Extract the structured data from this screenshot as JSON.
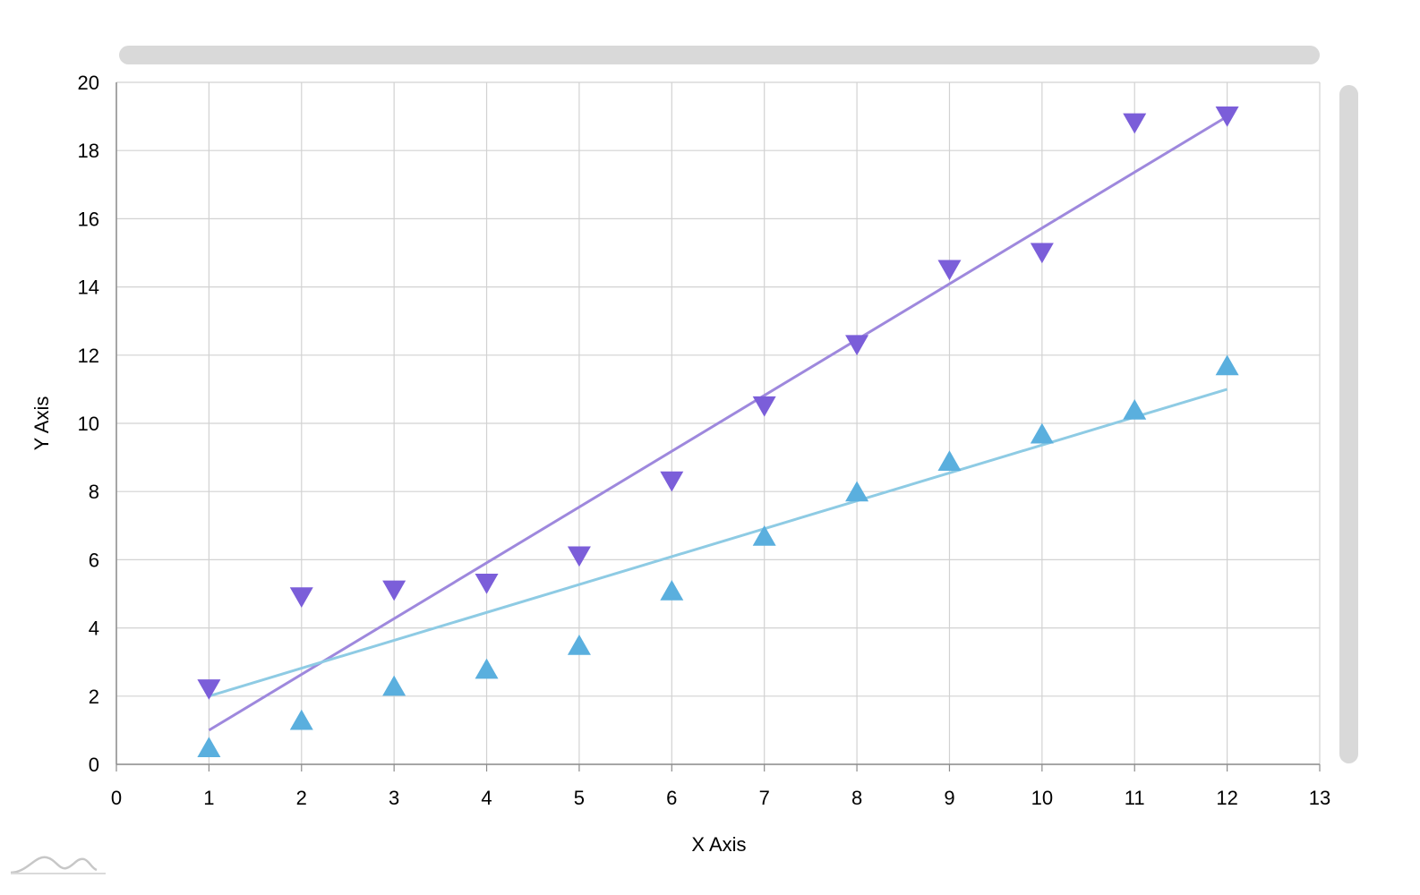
{
  "chart_data": {
    "type": "scatter",
    "xlabel": "X Axis",
    "ylabel": "Y Axis",
    "xlim": [
      0,
      13
    ],
    "ylim": [
      0,
      20
    ],
    "x_ticks": [
      "0",
      "1",
      "2",
      "3",
      "4",
      "5",
      "6",
      "7",
      "8",
      "9",
      "10",
      "11",
      "12",
      "13"
    ],
    "y_ticks": [
      "0",
      "2",
      "4",
      "6",
      "8",
      "10",
      "12",
      "14",
      "16",
      "18",
      "20"
    ],
    "grid": true,
    "series": [
      {
        "marker": "triangle-down",
        "color": "#7b5ed9",
        "trend_color": "#9e88dd",
        "x": [
          1,
          2,
          3,
          4,
          5,
          6,
          7,
          8,
          9,
          10,
          11,
          12
        ],
        "y": [
          2.2,
          4.9,
          5.1,
          5.3,
          6.1,
          8.3,
          10.5,
          12.3,
          14.5,
          15.0,
          18.8,
          19.0
        ],
        "trendline": {
          "x": [
            1,
            12
          ],
          "y": [
            1.0,
            19.0
          ]
        }
      },
      {
        "marker": "triangle-up",
        "color": "#5aafde",
        "trend_color": "#8ecbe4",
        "x": [
          1,
          2,
          3,
          4,
          5,
          6,
          7,
          8,
          9,
          10,
          11,
          12
        ],
        "y": [
          0.5,
          1.3,
          2.3,
          2.8,
          3.5,
          5.1,
          6.7,
          8.0,
          8.9,
          9.7,
          10.4,
          11.7
        ],
        "trendline": {
          "x": [
            1,
            12
          ],
          "y": [
            2.0,
            11.0
          ]
        }
      }
    ],
    "scrollbars": {
      "horizontal": {
        "color": "#d9d9d9"
      },
      "vertical": {
        "color": "#d9d9d9"
      }
    },
    "logo": "amcharts-logo"
  }
}
